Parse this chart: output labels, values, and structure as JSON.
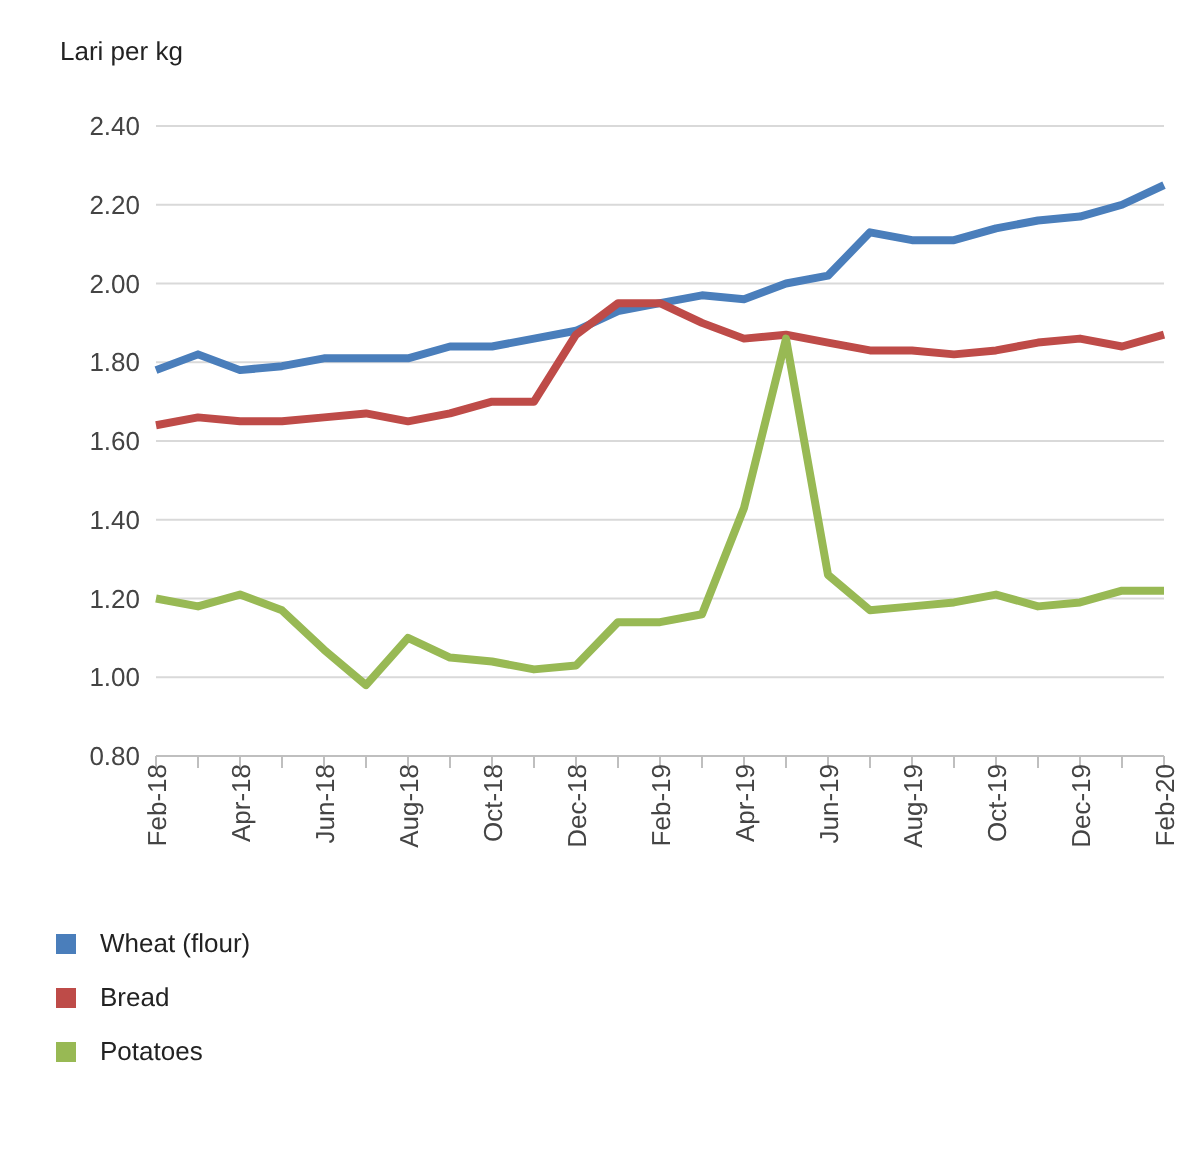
{
  "chart_data": {
    "type": "line",
    "ylabel": "Lari per kg",
    "categories": [
      "Feb-18",
      null,
      "Apr-18",
      null,
      "Jun-18",
      null,
      "Aug-18",
      null,
      "Oct-18",
      null,
      "Dec-18",
      null,
      "Feb-19",
      null,
      "Apr-19",
      null,
      "Jun-19",
      null,
      "Aug-19",
      null,
      "Oct-19",
      null,
      "Dec-19",
      null,
      "Feb-20"
    ],
    "series": [
      {
        "name": "Wheat (flour)",
        "color": "#4a7ebb",
        "values": [
          1.78,
          1.82,
          1.78,
          1.79,
          1.81,
          1.81,
          1.81,
          1.84,
          1.84,
          1.86,
          1.88,
          1.93,
          1.95,
          1.97,
          1.96,
          2.0,
          2.02,
          2.13,
          2.11,
          2.11,
          2.14,
          2.16,
          2.17,
          2.2,
          2.25
        ]
      },
      {
        "name": "Bread",
        "color": "#be4b48",
        "values": [
          1.64,
          1.66,
          1.65,
          1.65,
          1.66,
          1.67,
          1.65,
          1.67,
          1.7,
          1.7,
          1.87,
          1.95,
          1.95,
          1.9,
          1.86,
          1.87,
          1.85,
          1.83,
          1.83,
          1.82,
          1.83,
          1.85,
          1.86,
          1.84,
          1.87
        ]
      },
      {
        "name": "Potatoes",
        "color": "#98b954",
        "values": [
          1.2,
          1.18,
          1.21,
          1.17,
          1.07,
          0.98,
          1.1,
          1.05,
          1.04,
          1.02,
          1.03,
          1.14,
          1.14,
          1.16,
          1.43,
          1.86,
          1.26,
          1.17,
          1.18,
          1.19,
          1.21,
          1.18,
          1.19,
          1.22,
          1.22
        ]
      }
    ],
    "ylim": [
      0.8,
      2.4
    ],
    "yticks": [
      {
        "value": 0.8,
        "label": "0.80"
      },
      {
        "value": 1.0,
        "label": "1.00"
      },
      {
        "value": 1.2,
        "label": "1.20"
      },
      {
        "value": 1.4,
        "label": "1.40"
      },
      {
        "value": 1.6,
        "label": "1.60"
      },
      {
        "value": 1.8,
        "label": "1.80"
      },
      {
        "value": 2.0,
        "label": "2.00"
      },
      {
        "value": 2.2,
        "label": "2.20"
      },
      {
        "value": 2.4,
        "label": "2.40"
      }
    ],
    "grid": "y",
    "legend": "bottom",
    "marker": "none",
    "line_style": "solid"
  }
}
